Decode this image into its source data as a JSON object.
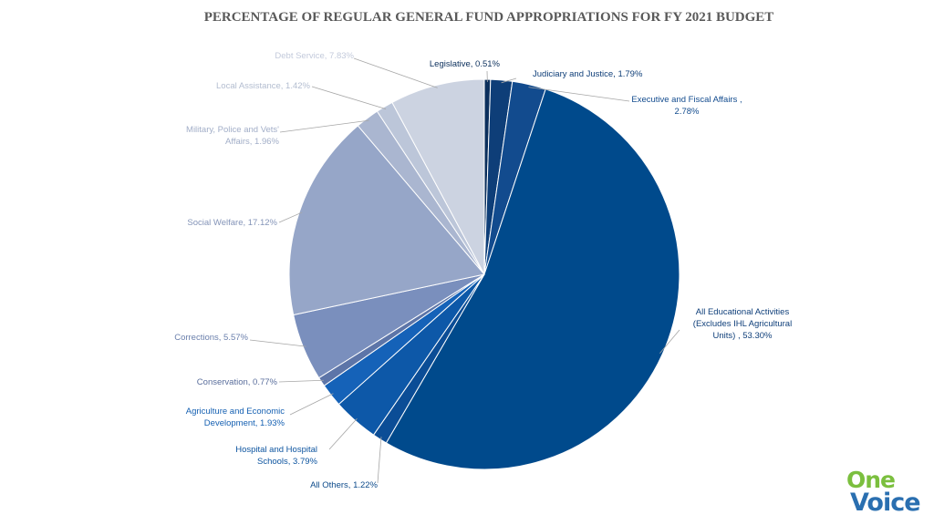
{
  "chart_data": {
    "type": "pie",
    "title": "PERCENTAGE OF REGULAR GENERAL FUND APPROPRIATIONS FOR FY 2021 BUDGET",
    "start_angle_deg": 0,
    "direction": "clockwise",
    "slices": [
      {
        "label": "Legislative, 0.51%",
        "value": 0.51,
        "color": "#0b2f5c",
        "label_color": "#0b2f5c"
      },
      {
        "label": "Judiciary and Justice, 1.79%",
        "value": 1.79,
        "color": "#0e3e78",
        "label_color": "#0e3e78"
      },
      {
        "label": "Executive and Fiscal Affairs , 2.78%",
        "value": 2.78,
        "color": "#124b8e",
        "label_color": "#124b8e"
      },
      {
        "label": "All Educational Activities (Excludes IHL Agricultural Units) , 53.30%",
        "value": 53.3,
        "color": "#004a8c",
        "label_color": "#0f3f7a"
      },
      {
        "label": "All Others, 1.22%",
        "value": 1.22,
        "color": "#0b4d96",
        "label_color": "#0c4a8a"
      },
      {
        "label": "Hospital and Hospital Schools, 3.79%",
        "value": 3.79,
        "color": "#0d58a8",
        "label_color": "#0e55a0"
      },
      {
        "label": "Agriculture and Economic Development, 1.93%",
        "value": 1.93,
        "color": "#1562b8",
        "label_color": "#1560b2"
      },
      {
        "label": "Conservation, 0.77%",
        "value": 0.77,
        "color": "#5d75a8",
        "label_color": "#5a6e9c"
      },
      {
        "label": "Corrections, 5.57%",
        "value": 5.57,
        "color": "#7a8fbd",
        "label_color": "#6a7fac"
      },
      {
        "label": "Social Welfare, 17.12%",
        "value": 17.12,
        "color": "#96a6c8",
        "label_color": "#8494b8"
      },
      {
        "label": "Military, Police and Vets' Affairs, 1.96%",
        "value": 1.96,
        "color": "#aab6d0",
        "label_color": "#a2aec8"
      },
      {
        "label": "Local Assistance, 1.42%",
        "value": 1.42,
        "color": "#bcc6d9",
        "label_color": "#b3bdd0"
      },
      {
        "label": "Debt Service, 7.83%",
        "value": 7.83,
        "color": "#ccd3e1",
        "label_color": "#c3cadb"
      }
    ]
  },
  "logo": {
    "line1": "One",
    "line2": "Voice"
  }
}
